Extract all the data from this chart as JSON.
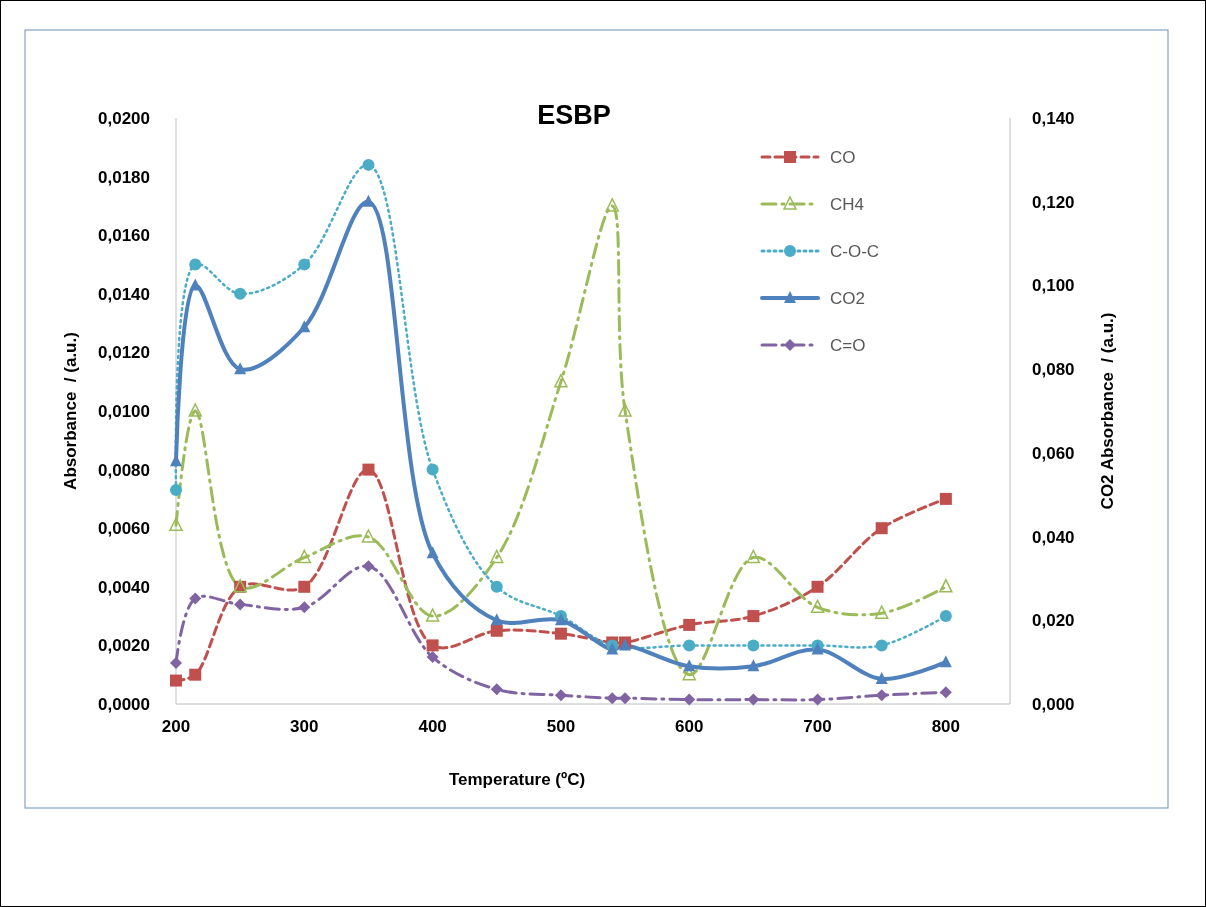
{
  "chart_data": {
    "type": "line",
    "title": "ESBP",
    "xlabel": "Temperature (ºC)",
    "ylabel": "Absorbance  / (a.u.)",
    "y2label": "CO2 Absorbance  / (a.u.)",
    "x": [
      200,
      215,
      250,
      300,
      350,
      400,
      450,
      500,
      540,
      550,
      600,
      650,
      700,
      750,
      800
    ],
    "xlim": [
      200,
      850
    ],
    "xticks": [
      200,
      300,
      400,
      500,
      600,
      700,
      800
    ],
    "ylim": [
      0,
      0.02
    ],
    "yticks": [
      {
        "value": 0,
        "label": "0,0000"
      },
      {
        "value": 0.002,
        "label": "0,0020"
      },
      {
        "value": 0.004,
        "label": "0,0040"
      },
      {
        "value": 0.006,
        "label": "0,0060"
      },
      {
        "value": 0.008,
        "label": "0,0080"
      },
      {
        "value": 0.01,
        "label": "0,0100"
      },
      {
        "value": 0.012,
        "label": "0,0120"
      },
      {
        "value": 0.014,
        "label": "0,0140"
      },
      {
        "value": 0.016,
        "label": "0,0160"
      },
      {
        "value": 0.018,
        "label": "0,0180"
      },
      {
        "value": 0.02,
        "label": "0,0200"
      }
    ],
    "y2lim": [
      0,
      0.14
    ],
    "y2ticks": [
      {
        "value": 0,
        "label": "0,000"
      },
      {
        "value": 0.02,
        "label": "0,020"
      },
      {
        "value": 0.04,
        "label": "0,040"
      },
      {
        "value": 0.06,
        "label": "0,060"
      },
      {
        "value": 0.08,
        "label": "0,080"
      },
      {
        "value": 0.1,
        "label": "0,100"
      },
      {
        "value": 0.12,
        "label": "0,120"
      },
      {
        "value": 0.14,
        "label": "0,140"
      }
    ],
    "grid": false,
    "legend": "top right",
    "series": [
      {
        "name": "CO",
        "color": "#c0504d",
        "marker": "square",
        "line_style": "dashed",
        "values": [
          0.0008,
          0.001,
          0.004,
          0.004,
          0.008,
          0.002,
          0.0025,
          0.0024,
          0.0021,
          0.0021,
          0.0027,
          0.003,
          0.004,
          0.006,
          0.007
        ]
      },
      {
        "name": "CH4",
        "color": "#9bbb59",
        "marker": "triangle",
        "line_style": "dashdot",
        "values": [
          0.0061,
          0.01,
          0.004,
          0.005,
          0.0057,
          0.003,
          0.005,
          0.011,
          0.017,
          0.01,
          0.001,
          0.005,
          0.0033,
          0.0031,
          0.004
        ]
      },
      {
        "name": "C-O-C",
        "color": "#4bacc6",
        "marker": "circle",
        "line_style": "dotted",
        "values": [
          0.0073,
          0.015,
          0.014,
          0.015,
          0.0184,
          0.008,
          0.004,
          0.003,
          0.002,
          null,
          0.002,
          0.002,
          0.002,
          0.002,
          0.003
        ]
      },
      {
        "name": "CO2",
        "color": "#4f81bd",
        "marker": "triangle",
        "line_style": "solid",
        "axis": "y2",
        "values": [
          0.058,
          0.1,
          0.08,
          0.09,
          0.12,
          0.036,
          0.02,
          0.02,
          0.013,
          0.014,
          0.009,
          0.009,
          0.013,
          0.006,
          0.01
        ]
      },
      {
        "name": "C=O",
        "color": "#8064a2",
        "marker": "diamond",
        "line_style": "dashdot",
        "values": [
          0.0014,
          0.0036,
          0.0034,
          0.0033,
          0.0047,
          0.0016,
          0.0005,
          0.0003,
          0.0002,
          0.0002,
          0.00015,
          0.00015,
          0.00015,
          0.0003,
          0.0004
        ]
      }
    ]
  }
}
